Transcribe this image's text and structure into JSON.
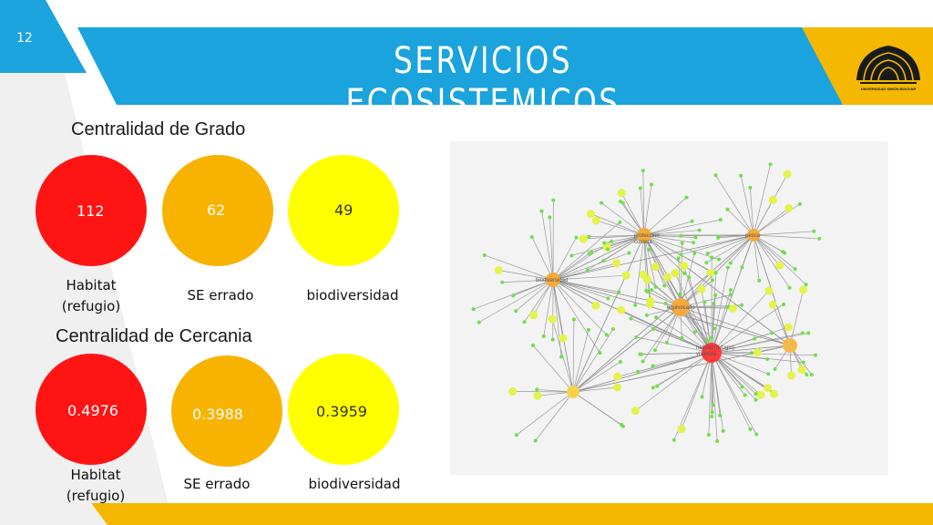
{
  "slide": {
    "number": "12",
    "title": "SERVICIOS ECOSISTEMICOS",
    "logo_text": "UNIVERSIDAD SIMÓN BOLÍVAR"
  },
  "colors": {
    "blue": "#1aa3dc",
    "gold": "#f5b800",
    "red": "#ff1414",
    "orange": "#f7b300",
    "yellow": "#ffff00"
  },
  "degree": {
    "title": "Centralidad de Grado",
    "items": [
      {
        "value": "112",
        "label_line1": "Habitat",
        "label_line2": "(refugio)"
      },
      {
        "value": "62",
        "label": "SE errado"
      },
      {
        "value": "49",
        "label": "biodiversidad"
      }
    ]
  },
  "closeness": {
    "title": "Centralidad de Cercania",
    "items": [
      {
        "value": "0.4976",
        "label_line1": "Habitat",
        "label_line2": "(refugio)"
      },
      {
        "value": "0.3988",
        "label": "SE errado"
      },
      {
        "value": "0.3959",
        "label": "biodiversidad"
      }
    ]
  },
  "network": {
    "hub_labels": {
      "proteccion": "proteccion\ncostera",
      "pesca": "pesca",
      "biodiversidad": "biodiversidad",
      "equivocado": "equivocado",
      "habitat": "habitat (refugio)\nvivienda"
    }
  }
}
